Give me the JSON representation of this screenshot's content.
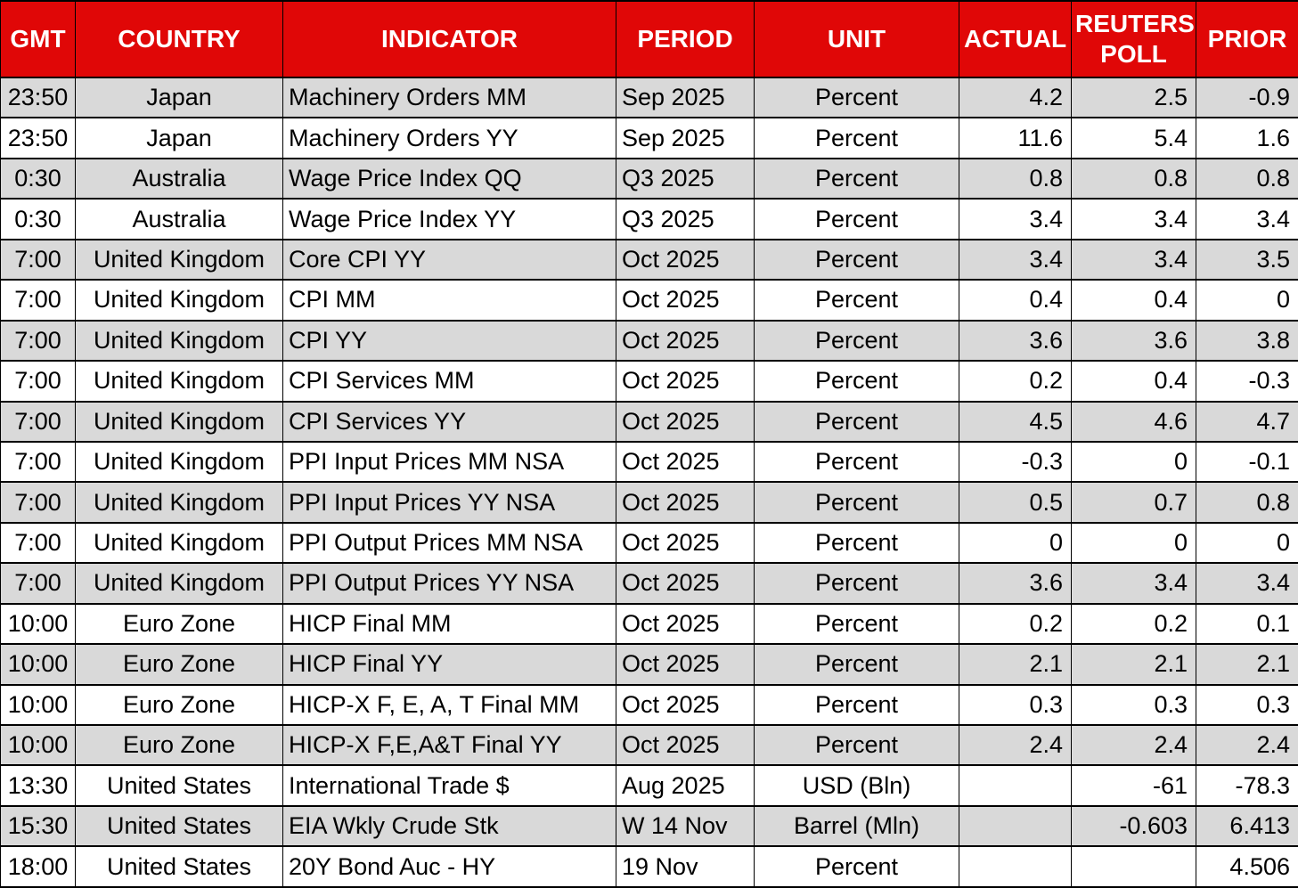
{
  "colors": {
    "header_bg": "#e00707",
    "header_text": "#ffffff",
    "row_stripe_bg": "#d9d9d9",
    "row_bg": "#ffffff",
    "border": "#000000",
    "text": "#000000"
  },
  "chart_data": {
    "type": "table",
    "columns": [
      "GMT",
      "COUNTRY",
      "INDICATOR",
      "PERIOD",
      "UNIT",
      "ACTUAL",
      "REUTERS POLL",
      "PRIOR"
    ],
    "column_keys": [
      "gmt",
      "country",
      "indicator",
      "period",
      "unit",
      "actual",
      "reuters-poll",
      "prior"
    ],
    "rows": [
      [
        "23:50",
        "Japan",
        "Machinery Orders MM",
        "Sep 2025",
        "Percent",
        "4.2",
        "2.5",
        "-0.9"
      ],
      [
        "23:50",
        "Japan",
        "Machinery Orders YY",
        "Sep 2025",
        "Percent",
        "11.6",
        "5.4",
        "1.6"
      ],
      [
        "0:30",
        "Australia",
        "Wage Price Index QQ",
        "Q3 2025",
        "Percent",
        "0.8",
        "0.8",
        "0.8"
      ],
      [
        "0:30",
        "Australia",
        "Wage Price Index YY",
        "Q3 2025",
        "Percent",
        "3.4",
        "3.4",
        "3.4"
      ],
      [
        "7:00",
        "United Kingdom",
        "Core CPI YY",
        "Oct 2025",
        "Percent",
        "3.4",
        "3.4",
        "3.5"
      ],
      [
        "7:00",
        "United Kingdom",
        "CPI MM",
        "Oct 2025",
        "Percent",
        "0.4",
        "0.4",
        "0"
      ],
      [
        "7:00",
        "United Kingdom",
        "CPI YY",
        "Oct 2025",
        "Percent",
        "3.6",
        "3.6",
        "3.8"
      ],
      [
        "7:00",
        "United Kingdom",
        "CPI Services MM",
        "Oct 2025",
        "Percent",
        "0.2",
        "0.4",
        "-0.3"
      ],
      [
        "7:00",
        "United Kingdom",
        "CPI Services YY",
        "Oct 2025",
        "Percent",
        "4.5",
        "4.6",
        "4.7"
      ],
      [
        "7:00",
        "United Kingdom",
        "PPI Input Prices MM NSA",
        "Oct 2025",
        "Percent",
        "-0.3",
        "0",
        "-0.1"
      ],
      [
        "7:00",
        "United Kingdom",
        "PPI Input Prices YY NSA",
        "Oct 2025",
        "Percent",
        "0.5",
        "0.7",
        "0.8"
      ],
      [
        "7:00",
        "United Kingdom",
        "PPI Output Prices MM NSA",
        "Oct 2025",
        "Percent",
        "0",
        "0",
        "0"
      ],
      [
        "7:00",
        "United Kingdom",
        "PPI Output Prices YY NSA",
        "Oct 2025",
        "Percent",
        "3.6",
        "3.4",
        "3.4"
      ],
      [
        "10:00",
        "Euro Zone",
        "HICP Final MM",
        "Oct 2025",
        "Percent",
        "0.2",
        "0.2",
        "0.1"
      ],
      [
        "10:00",
        "Euro Zone",
        "HICP Final YY",
        "Oct 2025",
        "Percent",
        "2.1",
        "2.1",
        "2.1"
      ],
      [
        "10:00",
        "Euro Zone",
        "HICP-X F, E, A, T Final MM",
        "Oct 2025",
        "Percent",
        "0.3",
        "0.3",
        "0.3"
      ],
      [
        "10:00",
        "Euro Zone",
        "HICP-X F,E,A&T Final YY",
        "Oct 2025",
        "Percent",
        "2.4",
        "2.4",
        "2.4"
      ],
      [
        "13:30",
        "United States",
        "International Trade $",
        "Aug 2025",
        "USD (Bln)",
        "",
        "-61",
        "-78.3"
      ],
      [
        "15:30",
        "United States",
        "EIA Wkly Crude Stk",
        "W 14 Nov",
        "Barrel (Mln)",
        "",
        "-0.603",
        "6.413"
      ],
      [
        "18:00",
        "United States",
        "20Y Bond Auc - HY",
        "19 Nov",
        "Percent",
        "",
        "",
        "4.506"
      ]
    ]
  }
}
